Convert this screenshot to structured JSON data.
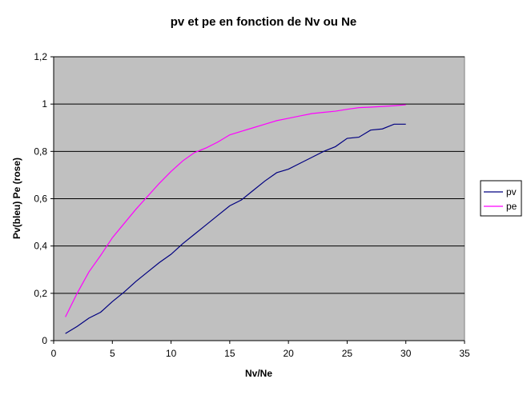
{
  "chart_data": {
    "type": "line",
    "title": "pv et pe en fonction de Nv ou Ne",
    "xlabel": "Nv/Ne",
    "ylabel": "Pv(bleu) Pe (rose)",
    "xlim": [
      0,
      35
    ],
    "ylim": [
      0,
      1.2
    ],
    "x_ticks": [
      0,
      5,
      10,
      15,
      20,
      25,
      30,
      35
    ],
    "y_ticks": [
      0,
      0.2,
      0.4,
      0.6,
      0.8,
      1,
      1.2
    ],
    "x_tick_labels": [
      "0",
      "5",
      "10",
      "15",
      "20",
      "25",
      "30",
      "35"
    ],
    "y_tick_labels": [
      "0",
      "0,2",
      "0,4",
      "0,6",
      "0,8",
      "1",
      "1,2"
    ],
    "grid": "horizontal",
    "plot_background": "#C0C0C0",
    "legend": "right",
    "x": [
      1,
      2,
      3,
      4,
      5,
      6,
      7,
      8,
      9,
      10,
      11,
      12,
      13,
      14,
      15,
      16,
      17,
      18,
      19,
      20,
      21,
      22,
      23,
      24,
      25,
      26,
      27,
      28,
      29,
      30
    ],
    "series": [
      {
        "name": "pv",
        "color": "#000080",
        "values": [
          0.03,
          0.06,
          0.095,
          0.12,
          0.165,
          0.205,
          0.25,
          0.29,
          0.33,
          0.365,
          0.41,
          0.45,
          0.49,
          0.53,
          0.57,
          0.595,
          0.635,
          0.675,
          0.71,
          0.725,
          0.75,
          0.775,
          0.8,
          0.82,
          0.855,
          0.86,
          0.89,
          0.895,
          0.915,
          0.915
        ]
      },
      {
        "name": "pe",
        "color": "#FF00FF",
        "values": [
          0.1,
          0.2,
          0.29,
          0.36,
          0.435,
          0.495,
          0.555,
          0.61,
          0.665,
          0.715,
          0.76,
          0.795,
          0.815,
          0.84,
          0.87,
          0.885,
          0.9,
          0.915,
          0.93,
          0.94,
          0.95,
          0.96,
          0.965,
          0.97,
          0.978,
          0.985,
          0.987,
          0.99,
          0.993,
          0.997
        ]
      }
    ]
  }
}
